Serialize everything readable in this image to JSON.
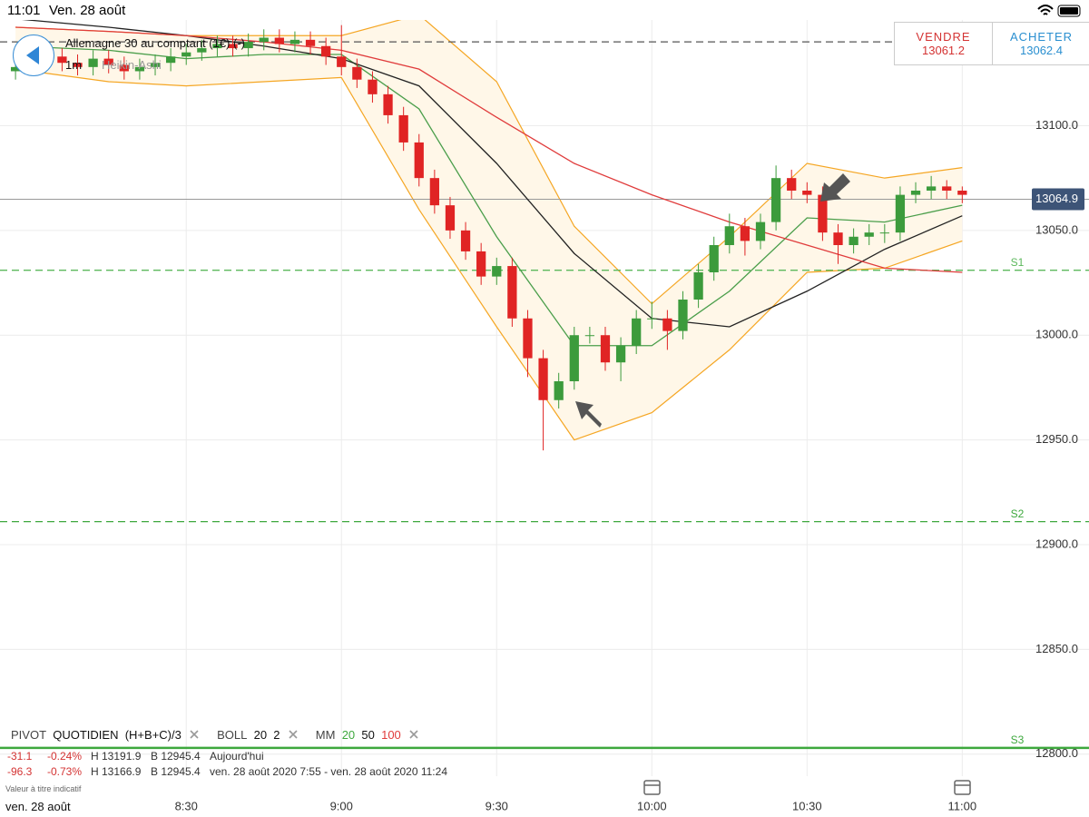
{
  "status_bar": {
    "time": "11:01",
    "date": "Ven. 28 août"
  },
  "header": {
    "instrument": "Allemagne 30 au comptant (1€) (-)",
    "interval": "1m",
    "chart_style": "Heikin-Ashi"
  },
  "trade": {
    "sell_label": "VENDRE",
    "sell_price": "13061.2",
    "buy_label": "ACHETER",
    "buy_price": "13062.4"
  },
  "chart_data": {
    "type": "candlestick",
    "x": [
      477,
      480,
      483,
      486,
      489,
      492,
      495,
      498,
      501,
      504,
      507,
      510,
      513,
      516,
      519,
      522,
      525,
      528,
      531,
      534,
      537,
      540,
      543,
      546,
      549,
      552,
      555,
      558,
      561,
      564,
      567,
      570,
      573,
      576,
      579,
      582,
      585,
      588,
      591,
      594,
      597,
      600,
      603,
      606,
      609,
      612,
      615,
      618,
      621,
      624,
      627,
      630,
      633,
      636,
      639,
      642,
      645,
      648,
      651,
      654,
      657,
      660
    ],
    "open": [
      13126,
      13128,
      13131,
      13133,
      13130,
      13128,
      13132,
      13129,
      13126,
      13128,
      13130,
      13133,
      13135,
      13137,
      13139,
      13137,
      13140,
      13142,
      13139,
      13141,
      13138,
      13133,
      13128,
      13122,
      13115,
      13105,
      13092,
      13075,
      13062,
      13050,
      13040,
      13028,
      13033,
      13008,
      12989,
      12969,
      12978,
      13000,
      13000,
      12987,
      12995,
      13008,
      13008,
      13002,
      13017,
      13030,
      13043,
      13052,
      13045,
      13054,
      13075,
      13069,
      13067,
      13049,
      13043,
      13047,
      13049,
      13049,
      13067,
      13069,
      13071,
      13069
    ],
    "high": [
      13132,
      13135,
      13137,
      13137,
      13134,
      13136,
      13136,
      13133,
      13132,
      13134,
      13137,
      13139,
      13141,
      13143,
      13143,
      13144,
      13146,
      13146,
      13145,
      13145,
      13142,
      13148,
      13132,
      13126,
      13119,
      13109,
      13096,
      13079,
      13066,
      13054,
      13044,
      13037,
      13037,
      13012,
      12993,
      12982,
      13004,
      13004,
      13004,
      12999,
      13012,
      13016,
      13012,
      13021,
      13034,
      13047,
      13058,
      13056,
      13058,
      13081,
      13079,
      13073,
      13071,
      13053,
      13051,
      13053,
      13053,
      13071,
      13073,
      13076,
      13074,
      13071
    ],
    "low": [
      13122,
      13124,
      13127,
      13126,
      13124,
      13124,
      13125,
      13122,
      13122,
      13124,
      13126,
      13129,
      13131,
      13133,
      13133,
      13133,
      13136,
      13135,
      13135,
      13134,
      13129,
      13124,
      13118,
      13111,
      13101,
      13088,
      13071,
      13058,
      13046,
      13036,
      13024,
      13024,
      13004,
      12980,
      12945,
      12965,
      12974,
      12996,
      12983,
      12978,
      12991,
      13003,
      12993,
      12998,
      13013,
      13026,
      13039,
      13038,
      13041,
      13050,
      13065,
      13063,
      13045,
      13034,
      13039,
      13043,
      13044,
      13045,
      13063,
      13065,
      13065,
      13063
    ],
    "close": [
      13128,
      13131,
      13133,
      13130,
      13128,
      13132,
      13129,
      13126,
      13128,
      13130,
      13133,
      13135,
      13137,
      13139,
      13137,
      13140,
      13142,
      13139,
      13141,
      13138,
      13133,
      13128,
      13122,
      13115,
      13105,
      13092,
      13075,
      13062,
      13050,
      13040,
      13028,
      13033,
      13008,
      12989,
      12969,
      12978,
      13000,
      13000,
      12987,
      12995,
      13008,
      13008,
      13002,
      13017,
      13030,
      13043,
      13052,
      13045,
      13054,
      13075,
      13069,
      13067,
      13049,
      13043,
      13047,
      13049,
      13049,
      13067,
      13069,
      13071,
      13069,
      13067
    ],
    "up_color": "#3c9b3c",
    "down_color": "#e02424",
    "line_x": [
      477,
      495,
      510,
      525,
      540,
      555,
      570,
      585,
      600,
      615,
      630,
      645,
      660
    ],
    "band": {
      "color": "#f5a623",
      "fill": "#fff7e8",
      "upper": [
        13147,
        13145,
        13143,
        13143,
        13143,
        13153,
        13121,
        13052,
        13015,
        13047,
        13082,
        13075,
        13080
      ],
      "lower": [
        13127,
        13121,
        13119,
        13121,
        13123,
        13060,
        13004,
        12950,
        12963,
        12993,
        13030,
        13032,
        13045
      ]
    },
    "lines": [
      {
        "color": "#4a9e4a",
        "values": [
          13138,
          13136,
          13132,
          13134,
          13134,
          13108,
          13047,
          12995,
          12995,
          13021,
          13056,
          13054,
          13062
        ]
      },
      {
        "color": "#222222",
        "values": [
          13151,
          13147,
          13143,
          13138,
          13132,
          13119,
          13082,
          13039,
          13008,
          13004,
          13021,
          13041,
          13057
        ]
      },
      {
        "color": "#e03c3c",
        "values": [
          13147,
          13145,
          13143,
          13140,
          13136,
          13127,
          13104,
          13082,
          13067,
          13054,
          13043,
          13032,
          13030
        ]
      }
    ],
    "levels": [
      {
        "value": 13140,
        "color": "#555555",
        "dashed": true
      },
      {
        "name": "S1",
        "value": 13031,
        "color": "#5cb85c",
        "dashed": true
      },
      {
        "name": "S2",
        "value": 12911,
        "color": "#3ea83e",
        "dashed": true
      },
      {
        "name": "S3",
        "value": 12803,
        "color": "#3ea83e",
        "dashed": false
      }
    ],
    "current": 13064.9,
    "xlim": [
      474,
      684.5
    ],
    "ylim": [
      12770,
      13160
    ],
    "xticks": [
      {
        "value": 510,
        "label": "8:30"
      },
      {
        "value": 540,
        "label": "9:00"
      },
      {
        "value": 570,
        "label": "9:30"
      },
      {
        "value": 600,
        "label": "10:00"
      },
      {
        "value": 630,
        "label": "10:30"
      },
      {
        "value": 660,
        "label": "11:00"
      }
    ],
    "yticks": [
      {
        "value": 13100,
        "label": "13100.0"
      },
      {
        "value": 13050,
        "label": "13050.0"
      },
      {
        "value": 13000,
        "label": "13000.0"
      },
      {
        "value": 12950,
        "label": "12950.0"
      },
      {
        "value": 12900,
        "label": "12900.0"
      },
      {
        "value": 12850,
        "label": "12850.0"
      },
      {
        "value": 12800,
        "label": "12800.0"
      }
    ],
    "grid": true
  },
  "indicators": {
    "pivot": "PIVOT",
    "pivot_period": "QUOTIDIEN",
    "pivot_formula": "(H+B+C)/3",
    "boll": "BOLL",
    "boll_period": "20",
    "boll_dev": "2",
    "mm": "MM",
    "mm_1": "20",
    "mm_2": "50",
    "mm_3": "100"
  },
  "stats": {
    "rows": [
      [
        "-31.1",
        "-0.24%",
        "H 13191.9",
        "B 12945.4",
        "Aujourd'hui"
      ],
      [
        "-96.3",
        "-0.73%",
        "H 13166.9",
        "B 12945.4",
        "ven. 28 août 2020 7:55 - ven. 28 août 2020 11:24"
      ]
    ]
  },
  "note": "Valeur à titre indicatif",
  "footer_date": "ven. 28 août"
}
